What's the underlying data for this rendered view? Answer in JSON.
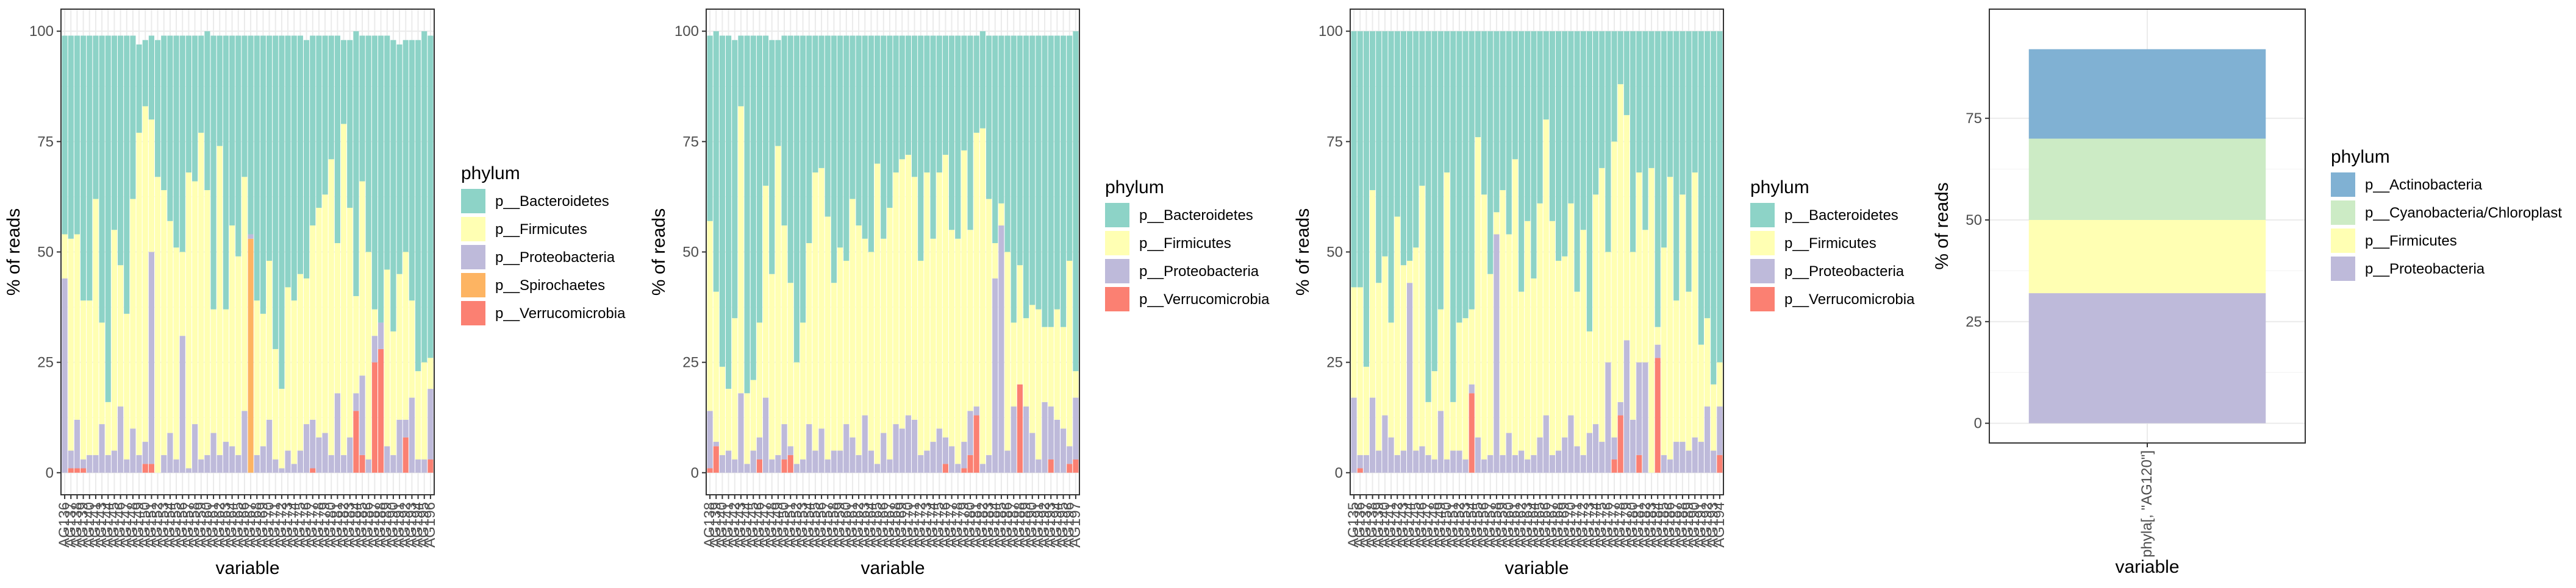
{
  "colors": {
    "p__Actinobacteria": "#80B1D3",
    "p__Bacteroidetes": "#8DD3C7",
    "p__Cyanobacteria/Chloroplast": "#CCEBC5",
    "p__Firmicutes": "#FFFFB3",
    "p__Proteobacteria": "#BEBADA",
    "p__Spirochaetes": "#FDB462",
    "p__Verrucomicrobia": "#FB8072"
  },
  "chart_data": [
    {
      "type": "bar",
      "stacked": true,
      "xlabel": "variable",
      "ylabel": "% of reads",
      "ylim": [
        0,
        100
      ],
      "yticks": [
        0,
        25,
        50,
        75,
        100
      ],
      "grid": true,
      "legend": {
        "title": "phylum",
        "placement": "right"
      },
      "categories": [
        "AG136",
        "AG137",
        "AG138",
        "AG139",
        "AG140",
        "AG141",
        "AG143",
        "AG144",
        "AG145",
        "AG146",
        "AG147",
        "AG148",
        "AG149",
        "AG150",
        "AG151",
        "AG152",
        "AG153",
        "AG154",
        "AG155",
        "AG156",
        "AG157",
        "AG158",
        "AG159",
        "AG160",
        "AG161",
        "AG162",
        "AG163",
        "AG164",
        "AG165",
        "AG166",
        "AG167",
        "AG168",
        "AG169",
        "AG170",
        "AG171",
        "AG172",
        "AG173",
        "AG174",
        "AG175",
        "AG176",
        "AG177",
        "AG178",
        "AG179",
        "AG180",
        "AG181",
        "AG182",
        "AG183",
        "AG184",
        "AG185",
        "AG186",
        "AG187",
        "AG188",
        "AG189",
        "AG190",
        "AG191",
        "AG192",
        "AG193",
        "AG194",
        "AG195",
        "AG196"
      ],
      "series": [
        {
          "name": "p__Verrucomicrobia",
          "values": [
            0,
            1,
            1,
            1,
            0,
            0,
            0,
            0,
            0,
            0,
            0,
            0,
            0,
            2,
            2,
            0,
            0,
            0,
            0,
            0,
            0,
            0,
            0,
            0,
            0,
            0,
            0,
            0,
            0,
            0,
            0,
            0,
            0,
            0,
            0,
            0,
            0,
            0,
            0,
            0,
            1,
            0,
            0,
            0,
            0,
            0,
            0,
            14,
            4,
            0,
            25,
            28,
            0,
            0,
            0,
            8,
            0,
            0,
            0,
            3
          ]
        },
        {
          "name": "p__Spirochaetes",
          "values": [
            0,
            0,
            0,
            0,
            0,
            0,
            0,
            0,
            0,
            0,
            0,
            0,
            0,
            0,
            0,
            0,
            0,
            0,
            0,
            0,
            0,
            0,
            0,
            0,
            0,
            0,
            0,
            0,
            0,
            0,
            53,
            0,
            0,
            0,
            0,
            0,
            0,
            0,
            0,
            0,
            0,
            0,
            0,
            0,
            0,
            0,
            0,
            0,
            0,
            0,
            0,
            0,
            0,
            0,
            0,
            0,
            0,
            0,
            0,
            0
          ]
        },
        {
          "name": "p__Proteobacteria",
          "values": [
            44,
            4,
            11,
            2,
            4,
            4,
            11,
            4,
            5,
            15,
            3,
            10,
            4,
            5,
            48,
            0,
            4,
            9,
            3,
            31,
            1,
            11,
            3,
            4,
            9,
            4,
            7,
            6,
            4,
            14,
            1,
            4,
            6,
            12,
            3,
            1,
            5,
            2,
            5,
            11,
            11,
            8,
            9,
            4,
            18,
            4,
            8,
            4,
            18,
            3,
            6,
            6,
            6,
            4,
            12,
            4,
            17,
            3,
            3,
            16
          ]
        },
        {
          "name": "p__Firmicutes",
          "values": [
            10,
            48,
            42,
            36,
            35,
            58,
            23,
            12,
            50,
            32,
            33,
            52,
            73,
            76,
            30,
            67,
            60,
            48,
            48,
            19,
            67,
            55,
            74,
            60,
            28,
            70,
            30,
            50,
            45,
            53,
            0,
            35,
            30,
            36,
            25,
            18,
            37,
            37,
            40,
            33,
            44,
            52,
            54,
            67,
            34,
            75,
            52,
            22,
            44,
            47,
            6,
            0,
            40,
            28,
            33,
            38,
            22,
            20,
            22,
            7
          ]
        },
        {
          "name": "p__Bacteroidetes",
          "values": [
            45,
            46,
            45,
            60,
            60,
            37,
            65,
            83,
            44,
            52,
            63,
            37,
            20,
            15,
            19,
            31,
            35,
            42,
            48,
            49,
            31,
            33,
            22,
            36,
            62,
            25,
            62,
            43,
            50,
            32,
            45,
            60,
            63,
            51,
            71,
            80,
            57,
            60,
            54,
            54,
            43,
            39,
            36,
            28,
            47,
            19,
            38,
            60,
            33,
            49,
            62,
            65,
            53,
            66,
            52,
            48,
            59,
            75,
            75,
            73
          ]
        }
      ]
    },
    {
      "type": "bar",
      "stacked": true,
      "xlabel": "variable",
      "ylabel": "% of reads",
      "ylim": [
        0,
        100
      ],
      "yticks": [
        0,
        25,
        50,
        75,
        100
      ],
      "grid": true,
      "legend": {
        "title": "phylum",
        "placement": "right"
      },
      "categories": [
        "AG138",
        "AG139",
        "AG140",
        "AG141",
        "AG142",
        "AG143",
        "AG144",
        "AG145",
        "AG146",
        "AG147",
        "AG148",
        "AG149",
        "AG150",
        "AG151",
        "AG152",
        "AG153",
        "AG154",
        "AG155",
        "AG156",
        "AG157",
        "AG158",
        "AG159",
        "AG160",
        "AG161",
        "AG162",
        "AG163",
        "AG164",
        "AG165",
        "AG166",
        "AG167",
        "AG168",
        "AG169",
        "AG170",
        "AG171",
        "AG172",
        "AG173",
        "AG174",
        "AG175",
        "AG176",
        "AG177",
        "AG178",
        "AG179",
        "AG180",
        "AG181",
        "AG182",
        "AG183",
        "AG184",
        "AG185",
        "AG186",
        "AG187",
        "AG188",
        "AG189",
        "AG190",
        "AG191",
        "AG192",
        "AG193",
        "AG194",
        "AG195",
        "AG196",
        "AG197"
      ],
      "series": [
        {
          "name": "p__Verrucomicrobia",
          "values": [
            1,
            6,
            0,
            0,
            0,
            0,
            0,
            0,
            3,
            0,
            0,
            0,
            3,
            4,
            0,
            0,
            0,
            0,
            0,
            0,
            0,
            0,
            0,
            0,
            0,
            0,
            0,
            0,
            0,
            0,
            0,
            0,
            0,
            0,
            0,
            0,
            0,
            0,
            2,
            0,
            0,
            1,
            4,
            13,
            0,
            0,
            0,
            0,
            0,
            0,
            20,
            0,
            0,
            0,
            0,
            3,
            0,
            0,
            2,
            3
          ]
        },
        {
          "name": "p__Proteobacteria",
          "values": [
            13,
            1,
            4,
            5,
            3,
            18,
            2,
            5,
            5,
            17,
            3,
            4,
            8,
            2,
            2,
            3,
            11,
            5,
            10,
            3,
            5,
            5,
            11,
            8,
            4,
            13,
            5,
            2,
            9,
            3,
            11,
            10,
            13,
            12,
            4,
            5,
            7,
            10,
            6,
            6,
            2,
            6,
            10,
            2,
            2,
            4,
            44,
            56,
            5,
            15,
            0,
            15,
            9,
            3,
            16,
            12,
            12,
            10,
            4,
            14
          ]
        },
        {
          "name": "p__Firmicutes",
          "values": [
            43,
            34,
            20,
            14,
            32,
            65,
            16,
            16,
            26,
            48,
            42,
            70,
            45,
            37,
            23,
            31,
            41,
            63,
            59,
            55,
            38,
            46,
            37,
            54,
            52,
            40,
            45,
            68,
            44,
            57,
            57,
            61,
            59,
            55,
            44,
            63,
            46,
            58,
            64,
            49,
            51,
            66,
            41,
            62,
            76,
            58,
            8,
            5,
            45,
            19,
            27,
            20,
            29,
            34,
            17,
            18,
            25,
            23,
            42,
            6
          ]
        },
        {
          "name": "p__Bacteroidetes",
          "values": [
            42,
            59,
            75,
            80,
            63,
            16,
            81,
            78,
            65,
            34,
            53,
            24,
            43,
            56,
            74,
            65,
            47,
            31,
            30,
            41,
            56,
            48,
            51,
            37,
            43,
            46,
            49,
            29,
            46,
            39,
            31,
            28,
            27,
            32,
            51,
            31,
            46,
            31,
            27,
            44,
            46,
            26,
            44,
            22,
            22,
            37,
            47,
            38,
            49,
            65,
            52,
            64,
            61,
            62,
            66,
            66,
            62,
            66,
            51,
            77
          ]
        }
      ]
    },
    {
      "type": "bar",
      "stacked": true,
      "xlabel": "variable",
      "ylabel": "% of reads",
      "ylim": [
        0,
        100
      ],
      "yticks": [
        0,
        25,
        50,
        75,
        100
      ],
      "grid": true,
      "legend": {
        "title": "phylum",
        "placement": "right"
      },
      "categories": [
        "AG135",
        "AG136",
        "AG137",
        "AG138",
        "AG139",
        "AG140",
        "AG141",
        "AG142",
        "AG143",
        "AG144",
        "AG145",
        "AG146",
        "AG147",
        "AG148",
        "AG149",
        "AG150",
        "AG151",
        "AG152",
        "AG153",
        "AG154",
        "AG155",
        "AG156",
        "AG157",
        "AG158",
        "AG159",
        "AG160",
        "AG161",
        "AG162",
        "AG163",
        "AG164",
        "AG165",
        "AG166",
        "AG167",
        "AG168",
        "AG169",
        "AG170",
        "AG171",
        "AG172",
        "AG173",
        "AG174",
        "AG175",
        "AG176",
        "AG177",
        "AG178",
        "AG179",
        "AG180",
        "AG181",
        "AG182",
        "AG183",
        "AG184",
        "AG185",
        "AG186",
        "AG187",
        "AG188",
        "AG189",
        "AG190",
        "AG191",
        "AG192",
        "AG193",
        "AG194"
      ],
      "series": [
        {
          "name": "p__Verrucomicrobia",
          "values": [
            0,
            1,
            0,
            0,
            0,
            0,
            0,
            0,
            0,
            0,
            0,
            0,
            0,
            0,
            0,
            0,
            0,
            0,
            0,
            18,
            0,
            0,
            0,
            0,
            0,
            0,
            0,
            0,
            0,
            0,
            0,
            0,
            0,
            0,
            0,
            0,
            0,
            0,
            0,
            0,
            0,
            0,
            3,
            13,
            0,
            0,
            4,
            0,
            0,
            26,
            0,
            0,
            0,
            0,
            0,
            0,
            0,
            0,
            0,
            4
          ]
        },
        {
          "name": "p__Proteobacteria",
          "values": [
            17,
            3,
            4,
            17,
            5,
            13,
            8,
            4,
            5,
            43,
            5,
            6,
            4,
            3,
            14,
            3,
            5,
            5,
            3,
            2,
            8,
            3,
            4,
            54,
            4,
            9,
            4,
            5,
            3,
            4,
            8,
            13,
            4,
            5,
            8,
            13,
            6,
            4,
            9,
            11,
            7,
            25,
            5,
            3,
            30,
            12,
            21,
            25,
            0,
            3,
            4,
            3,
            7,
            7,
            5,
            8,
            7,
            15,
            5,
            11
          ]
        },
        {
          "name": "p__Firmicutes",
          "values": [
            25,
            38,
            20,
            47,
            38,
            36,
            26,
            54,
            42,
            5,
            46,
            59,
            12,
            20,
            23,
            65,
            11,
            29,
            32,
            17,
            68,
            60,
            41,
            5,
            60,
            45,
            67,
            36,
            54,
            40,
            53,
            67,
            53,
            43,
            41,
            48,
            35,
            51,
            23,
            52,
            62,
            25,
            67,
            72,
            51,
            38,
            43,
            30,
            69,
            4,
            47,
            64,
            32,
            56,
            36,
            60,
            22,
            20,
            15,
            10
          ]
        },
        {
          "name": "p__Bacteroidetes",
          "values": [
            58,
            58,
            76,
            36,
            57,
            51,
            66,
            42,
            53,
            52,
            49,
            35,
            84,
            77,
            63,
            32,
            84,
            66,
            65,
            63,
            24,
            37,
            55,
            41,
            36,
            46,
            29,
            59,
            43,
            56,
            39,
            20,
            43,
            52,
            51,
            39,
            59,
            45,
            68,
            37,
            31,
            50,
            25,
            12,
            19,
            50,
            32,
            45,
            31,
            67,
            49,
            33,
            61,
            37,
            59,
            32,
            71,
            65,
            80,
            75
          ]
        }
      ]
    },
    {
      "type": "bar",
      "stacked": true,
      "xlabel": "variable",
      "ylabel": "% of reads",
      "ylim": [
        0,
        92
      ],
      "yticks": [
        0,
        25,
        50,
        75
      ],
      "grid": true,
      "legend": {
        "title": "phylum",
        "placement": "right"
      },
      "categories": [
        "phyla[, \"AG120\"]"
      ],
      "series": [
        {
          "name": "p__Proteobacteria",
          "values": [
            32
          ]
        },
        {
          "name": "p__Firmicutes",
          "values": [
            18
          ]
        },
        {
          "name": "p__Cyanobacteria/Chloroplast",
          "values": [
            20
          ]
        },
        {
          "name": "p__Actinobacteria",
          "values": [
            22
          ]
        }
      ]
    }
  ],
  "legends": [
    {
      "title": "phylum",
      "items": [
        "p__Bacteroidetes",
        "p__Firmicutes",
        "p__Proteobacteria",
        "p__Spirochaetes",
        "p__Verrucomicrobia"
      ]
    },
    {
      "title": "phylum",
      "items": [
        "p__Bacteroidetes",
        "p__Firmicutes",
        "p__Proteobacteria",
        "p__Verrucomicrobia"
      ]
    },
    {
      "title": "phylum",
      "items": [
        "p__Bacteroidetes",
        "p__Firmicutes",
        "p__Proteobacteria",
        "p__Verrucomicrobia"
      ]
    },
    {
      "title": "phylum",
      "items": [
        "p__Actinobacteria",
        "p__Cyanobacteria/Chloroplast",
        "p__Firmicutes",
        "p__Proteobacteria"
      ]
    }
  ]
}
